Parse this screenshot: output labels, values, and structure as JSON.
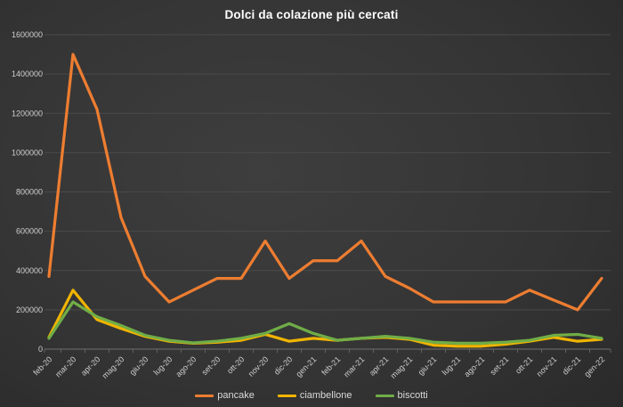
{
  "title": "Dolci da colazione più cercati",
  "colors": {
    "background_center": "#3e3e3e",
    "background_edge": "#272727",
    "grid": "#4a4a4a",
    "axis": "#707070",
    "tick": "#606060",
    "label_text": "#cfcfcf",
    "legend_text": "#d9d9d9",
    "title_text": "#ffffff"
  },
  "chart_data": {
    "type": "line",
    "title": "Dolci da colazione più cercati",
    "categories": [
      "feb-20",
      "mar-20",
      "apr-20",
      "mag-20",
      "giu-20",
      "lug-20",
      "ago-20",
      "set-20",
      "ott-20",
      "nov-20",
      "dic-20",
      "gen-21",
      "feb-21",
      "mar-21",
      "apr-21",
      "mag-21",
      "giu-21",
      "lug-21",
      "ago-21",
      "set-21",
      "ott-21",
      "nov-21",
      "dic-21",
      "gen-22"
    ],
    "series": [
      {
        "name": "pancake",
        "color": "#ED7D31",
        "values": [
          370000,
          1500000,
          1220000,
          670000,
          370000,
          240000,
          300000,
          360000,
          360000,
          550000,
          360000,
          450000,
          450000,
          550000,
          370000,
          310000,
          240000,
          240000,
          240000,
          240000,
          300000,
          250000,
          200000,
          360000
        ]
      },
      {
        "name": "ciambellone",
        "color": "#F0B400",
        "values": [
          60000,
          300000,
          150000,
          105000,
          65000,
          40000,
          30000,
          35000,
          45000,
          75000,
          40000,
          55000,
          45000,
          55000,
          60000,
          50000,
          20000,
          15000,
          15000,
          25000,
          40000,
          60000,
          40000,
          50000
        ]
      },
      {
        "name": "biscotti",
        "color": "#70AD47",
        "values": [
          55000,
          240000,
          165000,
          120000,
          70000,
          45000,
          32000,
          40000,
          55000,
          80000,
          130000,
          80000,
          45000,
          55000,
          65000,
          55000,
          35000,
          30000,
          30000,
          35000,
          45000,
          70000,
          75000,
          55000
        ]
      }
    ],
    "ylim": [
      0,
      1600000
    ],
    "y_ticks": [
      0,
      200000,
      400000,
      600000,
      800000,
      1000000,
      1200000,
      1400000,
      1600000
    ],
    "xlabel": "",
    "ylabel": "",
    "grid": "horizontal",
    "legend_position": "bottom",
    "x_label_rotation": -45
  }
}
